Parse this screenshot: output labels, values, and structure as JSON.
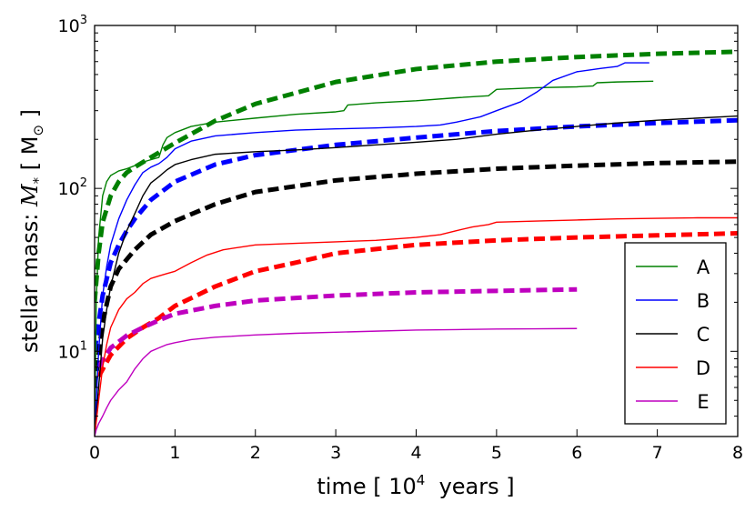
{
  "chart_data": {
    "type": "line",
    "title": "",
    "xlabel": "time [ 10",
    "xlabel_exp": "4",
    "xlabel_tail": "  years ]",
    "ylabel": "stellar mass: ",
    "ylabel_sym": "M",
    "ylabel_sub": "*",
    "ylabel_unit": " [ M",
    "ylabel_unit_sub": "⊙",
    "ylabel_close": " ]",
    "xlim": [
      0,
      8
    ],
    "ylim": [
      3,
      1000
    ],
    "yscale": "log",
    "x_ticks": [
      0,
      1,
      2,
      3,
      4,
      5,
      6,
      7,
      8
    ],
    "x_tick_labels": [
      "0",
      "1",
      "2",
      "3",
      "4",
      "5",
      "6",
      "7",
      "8"
    ],
    "y_ticks": [
      10,
      100,
      1000
    ],
    "y_tick_bases": [
      "10",
      "10",
      "10"
    ],
    "y_tick_exps": [
      "1",
      "2",
      "3"
    ],
    "legend_position": "lower-right",
    "series": [
      {
        "name": "A",
        "color": "#008000",
        "x": [
          0.0,
          0.02,
          0.05,
          0.1,
          0.15,
          0.2,
          0.3,
          0.4,
          0.5,
          0.6,
          0.7,
          0.8,
          0.85,
          0.9,
          1.0,
          1.2,
          1.5,
          2.0,
          2.5,
          3.0,
          3.1,
          3.15,
          3.5,
          4.0,
          4.5,
          4.9,
          5.0,
          5.5,
          6.0,
          6.2,
          6.25,
          6.5,
          6.95
        ],
        "values": [
          3,
          20,
          50,
          90,
          110,
          120,
          128,
          132,
          138,
          145,
          150,
          155,
          185,
          205,
          220,
          240,
          255,
          270,
          285,
          295,
          300,
          325,
          335,
          345,
          360,
          370,
          405,
          415,
          420,
          425,
          445,
          450,
          455
        ]
      },
      {
        "name": "B",
        "color": "#0000ff",
        "x": [
          0.0,
          0.05,
          0.1,
          0.15,
          0.2,
          0.3,
          0.4,
          0.5,
          0.6,
          0.7,
          0.8,
          0.9,
          1.0,
          1.2,
          1.5,
          2.0,
          2.5,
          3.0,
          3.5,
          4.0,
          4.3,
          4.5,
          4.8,
          5.0,
          5.3,
          5.5,
          5.7,
          6.0,
          6.3,
          6.5,
          6.6,
          6.9
        ],
        "values": [
          3,
          10,
          22,
          33,
          45,
          65,
          85,
          105,
          125,
          135,
          142,
          155,
          175,
          195,
          210,
          220,
          228,
          232,
          235,
          240,
          245,
          255,
          275,
          300,
          340,
          390,
          460,
          520,
          545,
          560,
          590,
          590
        ]
      },
      {
        "name": "C",
        "color": "#000000",
        "x": [
          0.0,
          0.05,
          0.1,
          0.15,
          0.2,
          0.3,
          0.4,
          0.5,
          0.6,
          0.7,
          0.8,
          0.9,
          1.0,
          1.2,
          1.5,
          2.0,
          2.5,
          3.0,
          3.5,
          4.0,
          4.5,
          5.0,
          5.5,
          6.0,
          6.5,
          7.0,
          7.5,
          8.0
        ],
        "values": [
          3,
          6,
          12,
          18,
          25,
          40,
          55,
          70,
          90,
          108,
          118,
          130,
          140,
          150,
          162,
          168,
          172,
          178,
          185,
          192,
          200,
          215,
          228,
          240,
          252,
          262,
          270,
          278
        ]
      },
      {
        "name": "D",
        "color": "#ff0000",
        "x": [
          0.0,
          0.05,
          0.1,
          0.15,
          0.2,
          0.3,
          0.4,
          0.5,
          0.6,
          0.7,
          0.8,
          0.9,
          1.0,
          1.2,
          1.4,
          1.6,
          2.0,
          2.5,
          3.0,
          3.5,
          4.0,
          4.3,
          4.5,
          4.7,
          4.9,
          5.0,
          5.5,
          6.0,
          6.5,
          7.0,
          7.5,
          8.0
        ],
        "values": [
          3,
          5,
          8,
          11,
          14,
          18,
          21,
          23,
          26,
          28,
          29,
          30,
          31,
          35,
          39,
          42,
          45,
          46,
          47,
          48,
          50,
          52,
          55,
          58,
          60,
          62,
          63,
          64,
          65,
          65.5,
          66,
          66
        ]
      },
      {
        "name": "E",
        "color": "#bf00bf",
        "x": [
          0.0,
          0.02,
          0.05,
          0.1,
          0.15,
          0.2,
          0.3,
          0.4,
          0.5,
          0.6,
          0.7,
          0.8,
          0.9,
          1.0,
          1.2,
          1.5,
          2.0,
          2.5,
          3.0,
          3.5,
          4.0,
          4.5,
          5.0,
          5.5,
          6.0
        ],
        "values": [
          3,
          3.3,
          3.6,
          4.0,
          4.5,
          5.0,
          5.8,
          6.5,
          7.8,
          9.0,
          10.0,
          10.5,
          11.0,
          11.3,
          11.8,
          12.2,
          12.6,
          12.9,
          13.1,
          13.3,
          13.5,
          13.6,
          13.7,
          13.75,
          13.8
        ]
      }
    ],
    "dashed_series": [
      {
        "name": "A",
        "color": "#008000",
        "x": [
          0.0,
          0.05,
          0.1,
          0.2,
          0.3,
          0.4,
          0.5,
          0.7,
          1.0,
          1.5,
          2.0,
          3.0,
          4.0,
          5.0,
          6.0,
          7.0,
          8.0
        ],
        "values": [
          20,
          40,
          62,
          90,
          110,
          125,
          135,
          155,
          190,
          260,
          330,
          450,
          540,
          600,
          640,
          670,
          690
        ]
      },
      {
        "name": "B",
        "color": "#0000ff",
        "x": [
          0.0,
          0.1,
          0.2,
          0.3,
          0.4,
          0.5,
          0.7,
          1.0,
          1.5,
          2.0,
          3.0,
          4.0,
          5.0,
          6.0,
          7.0,
          8.0
        ],
        "values": [
          10,
          22,
          35,
          45,
          55,
          65,
          85,
          110,
          140,
          160,
          185,
          205,
          225,
          240,
          252,
          262
        ]
      },
      {
        "name": "C",
        "color": "#000000",
        "x": [
          0.0,
          0.1,
          0.2,
          0.3,
          0.5,
          0.7,
          1.0,
          1.5,
          2.0,
          3.0,
          4.0,
          5.0,
          6.0,
          7.0,
          8.0
        ],
        "values": [
          6,
          15,
          25,
          32,
          42,
          52,
          63,
          80,
          95,
          112,
          123,
          132,
          138,
          143,
          146
        ]
      },
      {
        "name": "D",
        "color": "#ff0000",
        "x": [
          0.05,
          0.2,
          0.4,
          0.6,
          0.8,
          1.0,
          1.5,
          2.0,
          2.5,
          3.0,
          4.0,
          5.0,
          6.0,
          7.0,
          8.0
        ],
        "values": [
          7,
          9.5,
          12,
          14,
          16,
          19,
          25,
          31,
          35,
          40,
          45,
          48,
          50,
          51.5,
          53
        ]
      },
      {
        "name": "E",
        "color": "#bf00bf",
        "x": [
          0.05,
          0.2,
          0.4,
          0.6,
          0.8,
          1.0,
          1.5,
          2.0,
          3.0,
          4.0,
          5.0,
          6.0
        ],
        "values": [
          8,
          10.5,
          12.5,
          14,
          15.5,
          17,
          19,
          20.5,
          22,
          23,
          23.5,
          24
        ]
      }
    ]
  }
}
